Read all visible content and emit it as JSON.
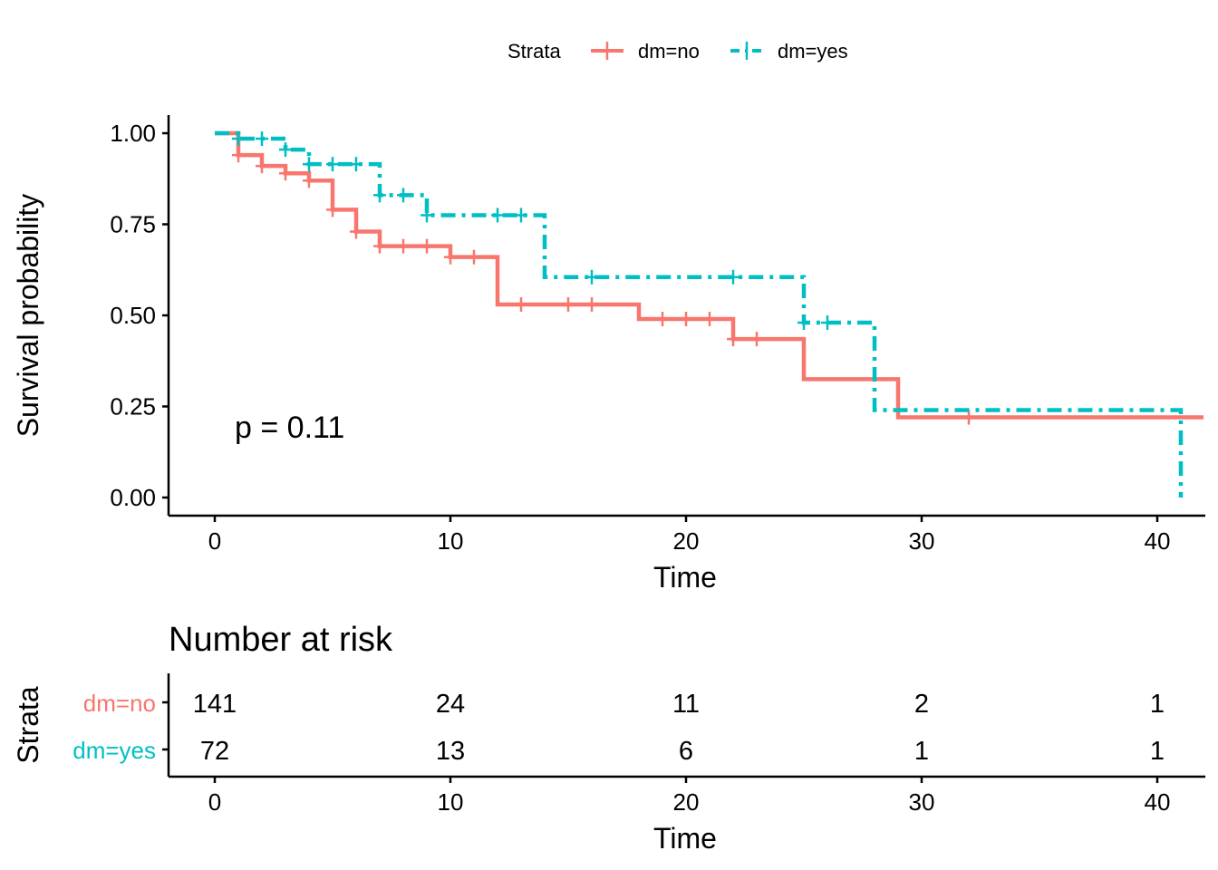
{
  "chart_data": [
    {
      "type": "line",
      "subtype": "kaplan-meier",
      "xlabel": "Time",
      "ylabel": "Survival probability",
      "xlim": [
        0,
        41
      ],
      "ylim": [
        0,
        1
      ],
      "x_ticks": [
        0,
        10,
        20,
        30,
        40
      ],
      "x_tick_labels": [
        "0",
        "10",
        "20",
        "30",
        "40"
      ],
      "y_ticks": [
        0,
        0.25,
        0.5,
        0.75,
        1
      ],
      "y_tick_labels": [
        "0.00",
        "0.25",
        "0.50",
        "0.75",
        "1.00"
      ],
      "annotation": "p = 0.11",
      "grid": false,
      "legend": {
        "title": "Strata",
        "position": "top",
        "entries": [
          "dm=no",
          "dm=yes"
        ]
      },
      "series": [
        {
          "name": "dm=no",
          "color": "#F8766D",
          "line_style": "solid",
          "steps": [
            [
              0,
              1.0
            ],
            [
              1,
              0.94
            ],
            [
              2,
              0.91
            ],
            [
              3,
              0.89
            ],
            [
              4,
              0.87
            ],
            [
              5,
              0.79
            ],
            [
              6,
              0.73
            ],
            [
              7,
              0.69
            ],
            [
              10,
              0.66
            ],
            [
              12,
              0.53
            ],
            [
              18,
              0.49
            ],
            [
              22,
              0.435
            ],
            [
              25,
              0.325
            ],
            [
              29,
              0.22
            ],
            [
              42,
              0.22
            ]
          ],
          "censored": [
            [
              1,
              0.94
            ],
            [
              2,
              0.91
            ],
            [
              3,
              0.89
            ],
            [
              4,
              0.87
            ],
            [
              5,
              0.79
            ],
            [
              6,
              0.73
            ],
            [
              7,
              0.69
            ],
            [
              8,
              0.69
            ],
            [
              9,
              0.69
            ],
            [
              10,
              0.66
            ],
            [
              11,
              0.66
            ],
            [
              13,
              0.53
            ],
            [
              15,
              0.53
            ],
            [
              16,
              0.53
            ],
            [
              19,
              0.49
            ],
            [
              20,
              0.49
            ],
            [
              21,
              0.49
            ],
            [
              22,
              0.435
            ],
            [
              23,
              0.435
            ],
            [
              32,
              0.22
            ]
          ]
        },
        {
          "name": "dm=yes",
          "color": "#00BFC4",
          "line_style": "dashed",
          "steps": [
            [
              0,
              1.0
            ],
            [
              1,
              0.985
            ],
            [
              3,
              0.955
            ],
            [
              4,
              0.915
            ],
            [
              7,
              0.83
            ],
            [
              9,
              0.775
            ],
            [
              14,
              0.605
            ],
            [
              25,
              0.48
            ],
            [
              28,
              0.24
            ],
            [
              41,
              0.0
            ]
          ],
          "censored": [
            [
              1,
              0.985
            ],
            [
              2,
              0.985
            ],
            [
              3,
              0.955
            ],
            [
              4,
              0.915
            ],
            [
              5,
              0.915
            ],
            [
              6,
              0.915
            ],
            [
              7,
              0.83
            ],
            [
              8,
              0.83
            ],
            [
              9,
              0.775
            ],
            [
              12,
              0.775
            ],
            [
              13,
              0.775
            ],
            [
              16,
              0.605
            ],
            [
              22,
              0.605
            ],
            [
              25,
              0.48
            ],
            [
              26,
              0.48
            ]
          ]
        }
      ]
    },
    {
      "type": "table",
      "title": "Number at risk",
      "xlabel": "Time",
      "ylabel": "Strata",
      "xlim": [
        0,
        41
      ],
      "x_ticks": [
        0,
        10,
        20,
        30,
        40
      ],
      "x_tick_labels": [
        "0",
        "10",
        "20",
        "30",
        "40"
      ],
      "rows": [
        {
          "name": "dm=no",
          "color": "#F8766D",
          "values": [
            141,
            24,
            11,
            2,
            1
          ]
        },
        {
          "name": "dm=yes",
          "color": "#00BFC4",
          "values": [
            72,
            13,
            6,
            1,
            1
          ]
        }
      ]
    }
  ]
}
